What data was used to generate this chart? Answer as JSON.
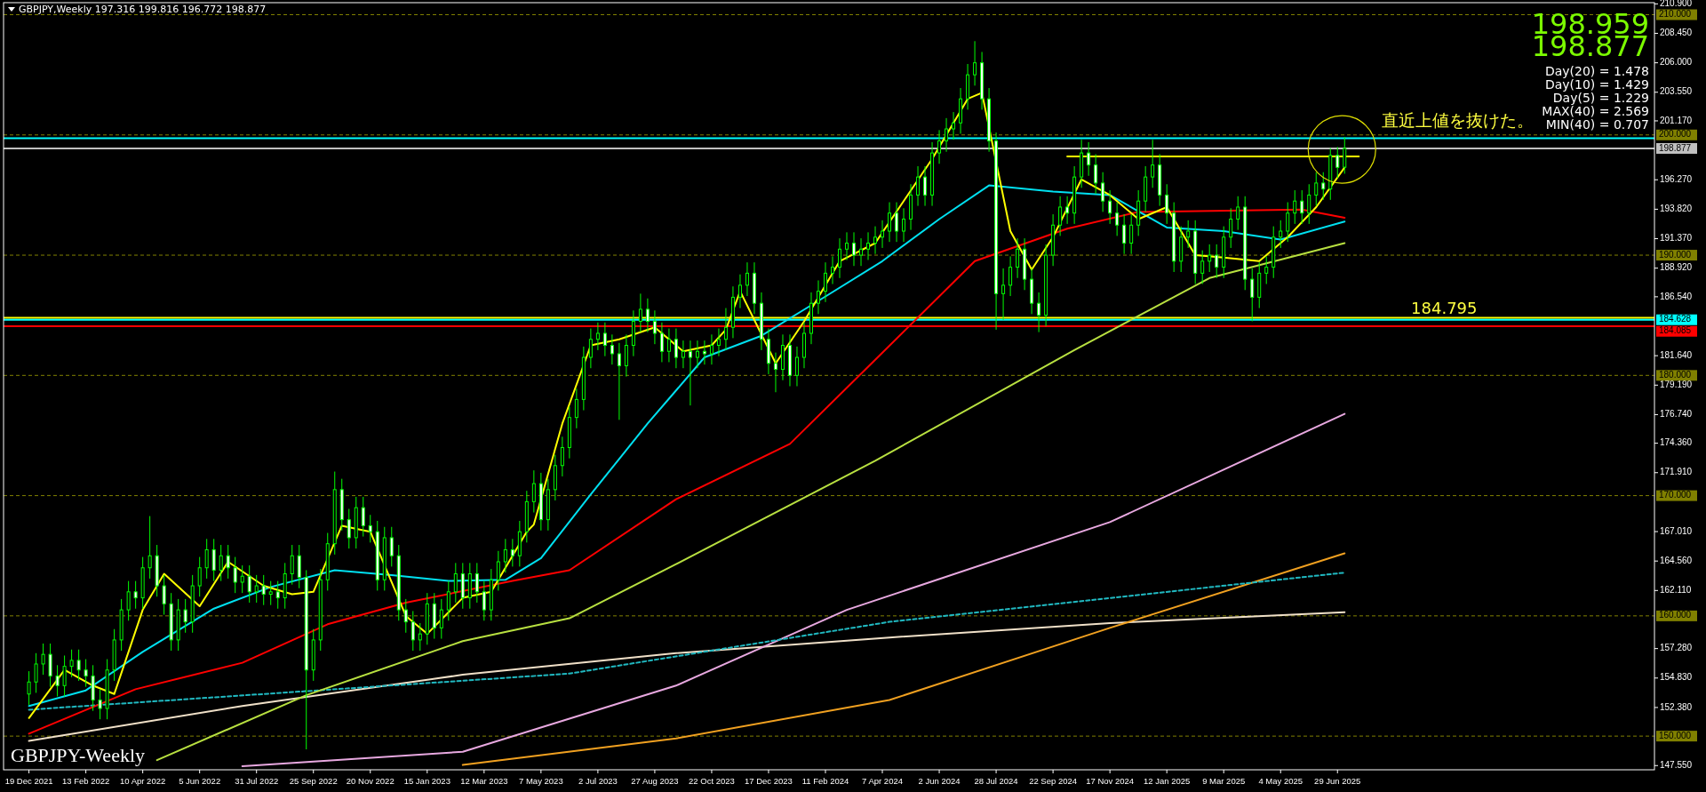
{
  "chart_data": {
    "type": "candlestick",
    "title": "GBPJPY,Weekly  197.316 199.816 196.772 198.877",
    "color": "#00ff00",
    "xlim": [
      "2021-11-24",
      "2026-05-07"
    ],
    "ylim": [
      147.2,
      211.0
    ],
    "xticks": [
      {
        "value": "2021-12-19",
        "label": "19 Dec 2021"
      },
      {
        "value": "2022-02-13",
        "label": "13 Feb 2022"
      },
      {
        "value": "2022-04-10",
        "label": "10 Apr 2022"
      },
      {
        "value": "2022-06-05",
        "label": "5 Jun 2022"
      },
      {
        "value": "2022-07-31",
        "label": "31 Jul 2022"
      },
      {
        "value": "2022-09-25",
        "label": "25 Sep 2022"
      },
      {
        "value": "2022-11-20",
        "label": "20 Nov 2022"
      },
      {
        "value": "2023-01-15",
        "label": "15 Jan 2023"
      },
      {
        "value": "2023-03-12",
        "label": "12 Mar 2023"
      },
      {
        "value": "2023-05-07",
        "label": "7 May 2023"
      },
      {
        "value": "2023-07-02",
        "label": "2 Jul 2023"
      },
      {
        "value": "2023-08-27",
        "label": "27 Aug 2023"
      },
      {
        "value": "2023-10-22",
        "label": "22 Oct 2023"
      },
      {
        "value": "2023-12-17",
        "label": "17 Dec 2023"
      },
      {
        "value": "2024-02-11",
        "label": "11 Feb 2024"
      },
      {
        "value": "2024-04-07",
        "label": "7 Apr 2024"
      },
      {
        "value": "2024-06-02",
        "label": "2 Jun 2024"
      },
      {
        "value": "2024-07-28",
        "label": "28 Jul 2024"
      },
      {
        "value": "2024-09-22",
        "label": "22 Sep 2024"
      },
      {
        "value": "2024-11-17",
        "label": "17 Nov 2024"
      },
      {
        "value": "2025-01-12",
        "label": "12 Jan 2025"
      },
      {
        "value": "2025-03-09",
        "label": "9 Mar 2025"
      },
      {
        "value": "2025-05-04",
        "label": "4 May 2025"
      },
      {
        "value": "2025-06-29",
        "label": "29 Jun 2025"
      }
    ],
    "yticks": [
      {
        "value": 210.9,
        "label": "210.900"
      },
      {
        "value": 208.45,
        "label": "208.450"
      },
      {
        "value": 206.0,
        "label": "206.000"
      },
      {
        "value": 203.55,
        "label": "203.550"
      },
      {
        "value": 201.17,
        "label": "201.170"
      },
      {
        "value": 196.27,
        "label": "196.270"
      },
      {
        "value": 193.82,
        "label": "193.820"
      },
      {
        "value": 191.37,
        "label": "191.370"
      },
      {
        "value": 188.92,
        "label": "188.920"
      },
      {
        "value": 186.54,
        "label": "186.540"
      },
      {
        "value": 181.64,
        "label": "181.640"
      },
      {
        "value": 179.19,
        "label": "179.190"
      },
      {
        "value": 176.74,
        "label": "176.740"
      },
      {
        "value": 174.36,
        "label": "174.360"
      },
      {
        "value": 171.91,
        "label": "171.910"
      },
      {
        "value": 167.01,
        "label": "167.010"
      },
      {
        "value": 164.56,
        "label": "164.560"
      },
      {
        "value": 162.11,
        "label": "162.110"
      },
      {
        "value": 157.28,
        "label": "157.280"
      },
      {
        "value": 154.83,
        "label": "154.830"
      },
      {
        "value": 152.38,
        "label": "152.380"
      },
      {
        "value": 147.55,
        "label": "147.550"
      }
    ],
    "x": [
      "2021-12-19",
      "2021-12-26",
      "2022-01-02",
      "2022-01-09",
      "2022-01-16",
      "2022-01-23",
      "2022-01-30",
      "2022-02-06",
      "2022-02-13",
      "2022-02-20",
      "2022-02-27",
      "2022-03-06",
      "2022-03-13",
      "2022-03-20",
      "2022-03-27",
      "2022-04-03",
      "2022-04-10",
      "2022-04-17",
      "2022-04-24",
      "2022-05-01",
      "2022-05-08",
      "2022-05-15",
      "2022-05-22",
      "2022-05-29",
      "2022-06-05",
      "2022-06-12",
      "2022-06-19",
      "2022-06-26",
      "2022-07-03",
      "2022-07-10",
      "2022-07-17",
      "2022-07-24",
      "2022-07-31",
      "2022-08-07",
      "2022-08-14",
      "2022-08-21",
      "2022-08-28",
      "2022-09-04",
      "2022-09-11",
      "2022-09-18",
      "2022-09-25",
      "2022-10-02",
      "2022-10-09",
      "2022-10-16",
      "2022-10-23",
      "2022-10-30",
      "2022-11-06",
      "2022-11-13",
      "2022-11-20",
      "2022-11-27",
      "2022-12-04",
      "2022-12-11",
      "2022-12-18",
      "2022-12-25",
      "2023-01-01",
      "2023-01-08",
      "2023-01-15",
      "2023-01-22",
      "2023-01-29",
      "2023-02-05",
      "2023-02-12",
      "2023-02-19",
      "2023-02-26",
      "2023-03-05",
      "2023-03-12",
      "2023-03-19",
      "2023-03-26",
      "2023-04-02",
      "2023-04-09",
      "2023-04-16",
      "2023-04-23",
      "2023-04-30",
      "2023-05-07",
      "2023-05-14",
      "2023-05-21",
      "2023-05-28",
      "2023-06-04",
      "2023-06-11",
      "2023-06-18",
      "2023-06-25",
      "2023-07-02",
      "2023-07-09",
      "2023-07-16",
      "2023-07-23",
      "2023-07-30",
      "2023-08-06",
      "2023-08-13",
      "2023-08-20",
      "2023-08-27",
      "2023-09-03",
      "2023-09-10",
      "2023-09-17",
      "2023-09-24",
      "2023-10-01",
      "2023-10-08",
      "2023-10-15",
      "2023-10-22",
      "2023-10-29",
      "2023-11-05",
      "2023-11-12",
      "2023-11-19",
      "2023-11-26",
      "2023-12-03",
      "2023-12-10",
      "2023-12-17",
      "2023-12-24",
      "2023-12-31",
      "2024-01-07",
      "2024-01-14",
      "2024-01-21",
      "2024-01-28",
      "2024-02-04",
      "2024-02-11",
      "2024-02-18",
      "2024-02-25",
      "2024-03-03",
      "2024-03-10",
      "2024-03-17",
      "2024-03-24",
      "2024-03-31",
      "2024-04-07",
      "2024-04-14",
      "2024-04-21",
      "2024-04-28",
      "2024-05-05",
      "2024-05-12",
      "2024-05-19",
      "2024-05-26",
      "2024-06-02",
      "2024-06-09",
      "2024-06-16",
      "2024-06-23",
      "2024-06-30",
      "2024-07-07",
      "2024-07-14",
      "2024-07-21",
      "2024-07-28",
      "2024-08-04",
      "2024-08-11",
      "2024-08-18",
      "2024-08-25",
      "2024-09-01",
      "2024-09-08",
      "2024-09-15",
      "2024-09-22",
      "2024-09-29",
      "2024-10-06",
      "2024-10-13",
      "2024-10-20",
      "2024-10-27",
      "2024-11-03",
      "2024-11-10",
      "2024-11-17",
      "2024-11-24",
      "2024-12-01",
      "2024-12-08",
      "2024-12-15",
      "2024-12-22",
      "2024-12-29",
      "2025-01-05",
      "2025-01-12",
      "2025-01-19",
      "2025-01-26",
      "2025-02-02",
      "2025-02-09",
      "2025-02-16",
      "2025-02-23",
      "2025-03-02",
      "2025-03-09",
      "2025-03-16",
      "2025-03-23",
      "2025-03-30",
      "2025-04-06",
      "2025-04-13",
      "2025-04-20",
      "2025-04-27",
      "2025-05-04",
      "2025-05-11",
      "2025-05-18",
      "2025-05-25",
      "2025-06-01",
      "2025-06-08",
      "2025-06-15",
      "2025-06-22",
      "2025-06-29",
      "2025-07-06"
    ],
    "ohlc": [
      [
        153.5,
        155.4,
        152.6,
        154.5
      ],
      [
        154.5,
        156.9,
        153.6,
        156.0
      ],
      [
        156.0,
        157.7,
        155.1,
        156.8
      ],
      [
        156.8,
        157.7,
        154.1,
        155.0
      ],
      [
        155.0,
        155.9,
        153.3,
        154.2
      ],
      [
        154.2,
        156.7,
        153.3,
        155.8
      ],
      [
        155.8,
        157.2,
        154.9,
        156.3
      ],
      [
        156.3,
        157.2,
        154.6,
        155.5
      ],
      [
        155.5,
        156.4,
        154.1,
        155.0
      ],
      [
        155.0,
        155.9,
        152.1,
        153.0
      ],
      [
        153.0,
        153.9,
        151.4,
        152.3
      ],
      [
        152.3,
        156.4,
        151.4,
        155.5
      ],
      [
        155.5,
        158.9,
        154.6,
        158.0
      ],
      [
        158.0,
        161.4,
        157.1,
        160.5
      ],
      [
        160.5,
        162.9,
        159.6,
        162.0
      ],
      [
        162.0,
        162.9,
        160.6,
        161.5
      ],
      [
        161.5,
        164.9,
        160.6,
        164.0
      ],
      [
        164.0,
        168.3,
        163.1,
        165.0
      ],
      [
        165.0,
        165.9,
        161.6,
        162.5
      ],
      [
        162.5,
        163.4,
        160.1,
        161.0
      ],
      [
        161.0,
        161.9,
        157.1,
        158.0
      ],
      [
        158.0,
        161.4,
        157.1,
        160.5
      ],
      [
        160.5,
        161.4,
        158.6,
        159.5
      ],
      [
        159.5,
        163.4,
        158.6,
        162.5
      ],
      [
        162.5,
        164.9,
        161.6,
        164.0
      ],
      [
        164.0,
        166.4,
        163.1,
        165.5
      ],
      [
        165.5,
        166.4,
        162.9,
        163.8
      ],
      [
        163.8,
        165.9,
        162.9,
        165.0
      ],
      [
        165.0,
        165.9,
        163.1,
        164.0
      ],
      [
        164.0,
        164.9,
        161.9,
        162.8
      ],
      [
        162.8,
        164.2,
        161.9,
        163.3
      ],
      [
        163.3,
        164.2,
        161.1,
        162.0
      ],
      [
        162.0,
        163.4,
        161.1,
        162.5
      ],
      [
        162.5,
        163.4,
        160.9,
        161.8
      ],
      [
        161.8,
        162.9,
        160.9,
        162.0
      ],
      [
        162.0,
        162.9,
        160.6,
        161.5
      ],
      [
        161.5,
        164.4,
        160.6,
        163.5
      ],
      [
        163.5,
        165.9,
        162.6,
        165.0
      ],
      [
        165.0,
        165.9,
        162.3,
        163.2
      ],
      [
        163.2,
        163.8,
        148.9,
        155.5
      ],
      [
        155.5,
        158.9,
        154.6,
        158.0
      ],
      [
        158.0,
        163.9,
        157.1,
        163.0
      ],
      [
        163.0,
        166.9,
        162.1,
        166.0
      ],
      [
        166.0,
        172.0,
        165.1,
        170.5
      ],
      [
        170.5,
        171.4,
        167.1,
        168.0
      ],
      [
        168.0,
        168.9,
        165.6,
        166.5
      ],
      [
        166.5,
        169.9,
        165.6,
        169.0
      ],
      [
        169.0,
        169.9,
        166.6,
        167.5
      ],
      [
        167.5,
        168.4,
        166.1,
        167.0
      ],
      [
        167.0,
        167.9,
        162.1,
        163.0
      ],
      [
        163.0,
        167.4,
        162.1,
        166.5
      ],
      [
        166.5,
        167.4,
        164.1,
        165.0
      ],
      [
        165.0,
        165.9,
        159.6,
        160.5
      ],
      [
        160.5,
        161.4,
        158.6,
        159.5
      ],
      [
        159.5,
        160.4,
        157.1,
        158.0
      ],
      [
        158.0,
        159.4,
        157.1,
        158.5
      ],
      [
        158.5,
        161.9,
        157.6,
        161.0
      ],
      [
        161.0,
        161.9,
        158.1,
        159.0
      ],
      [
        159.0,
        161.4,
        158.1,
        160.5
      ],
      [
        160.5,
        162.9,
        159.6,
        162.0
      ],
      [
        162.0,
        164.4,
        161.1,
        163.5
      ],
      [
        163.5,
        164.4,
        160.6,
        161.5
      ],
      [
        161.5,
        164.4,
        160.6,
        163.5
      ],
      [
        163.5,
        164.4,
        161.1,
        162.0
      ],
      [
        162.0,
        162.9,
        159.6,
        160.5
      ],
      [
        160.5,
        163.9,
        159.6,
        163.0
      ],
      [
        163.0,
        165.4,
        162.1,
        164.5
      ],
      [
        164.5,
        166.4,
        163.6,
        165.5
      ],
      [
        165.5,
        166.4,
        164.1,
        165.0
      ],
      [
        165.0,
        167.9,
        164.1,
        167.0
      ],
      [
        167.0,
        170.4,
        166.1,
        169.5
      ],
      [
        169.5,
        172.1,
        168.6,
        171.0
      ],
      [
        171.0,
        171.9,
        167.1,
        168.0
      ],
      [
        168.0,
        171.4,
        167.1,
        170.5
      ],
      [
        170.5,
        173.4,
        169.6,
        172.5
      ],
      [
        172.5,
        174.9,
        171.6,
        174.0
      ],
      [
        174.0,
        177.4,
        173.1,
        176.5
      ],
      [
        176.5,
        178.9,
        175.6,
        178.0
      ],
      [
        178.0,
        182.4,
        177.1,
        181.5
      ],
      [
        181.5,
        183.9,
        180.6,
        183.0
      ],
      [
        183.0,
        184.4,
        182.1,
        183.5
      ],
      [
        183.5,
        184.4,
        181.6,
        182.5
      ],
      [
        182.5,
        183.4,
        180.9,
        181.8
      ],
      [
        181.8,
        182.7,
        176.3,
        180.8
      ],
      [
        180.8,
        183.4,
        179.9,
        182.5
      ],
      [
        182.5,
        185.4,
        181.6,
        184.5
      ],
      [
        184.5,
        186.8,
        183.6,
        185.5
      ],
      [
        185.5,
        186.4,
        183.6,
        184.5
      ],
      [
        184.5,
        185.4,
        182.6,
        183.5
      ],
      [
        183.5,
        184.4,
        181.1,
        182.0
      ],
      [
        182.0,
        183.9,
        181.1,
        183.0
      ],
      [
        183.0,
        183.9,
        180.6,
        181.5
      ],
      [
        181.5,
        182.9,
        180.6,
        182.0
      ],
      [
        182.0,
        182.9,
        177.5,
        181.5
      ],
      [
        181.5,
        182.9,
        180.6,
        182.0
      ],
      [
        182.0,
        182.9,
        180.9,
        181.8
      ],
      [
        181.8,
        183.4,
        180.9,
        182.5
      ],
      [
        182.5,
        183.9,
        181.6,
        183.0
      ],
      [
        183.0,
        185.6,
        182.1,
        184.0
      ],
      [
        184.0,
        187.4,
        183.1,
        186.5
      ],
      [
        186.5,
        188.4,
        185.6,
        187.5
      ],
      [
        187.5,
        189.4,
        186.6,
        188.5
      ],
      [
        188.5,
        189.4,
        185.1,
        186.0
      ],
      [
        186.0,
        186.9,
        182.1,
        183.0
      ],
      [
        183.0,
        183.9,
        180.1,
        181.0
      ],
      [
        181.0,
        181.9,
        178.6,
        180.5
      ],
      [
        180.5,
        183.4,
        179.6,
        182.5
      ],
      [
        182.5,
        183.4,
        179.1,
        180.0
      ],
      [
        180.0,
        182.4,
        179.1,
        181.5
      ],
      [
        181.5,
        184.4,
        180.6,
        183.5
      ],
      [
        183.5,
        186.9,
        182.6,
        186.0
      ],
      [
        186.0,
        187.9,
        185.1,
        187.0
      ],
      [
        187.0,
        189.4,
        186.1,
        188.5
      ],
      [
        188.5,
        189.9,
        187.6,
        189.0
      ],
      [
        189.0,
        191.4,
        188.1,
        190.5
      ],
      [
        190.5,
        191.9,
        189.6,
        191.0
      ],
      [
        191.0,
        191.9,
        189.1,
        190.0
      ],
      [
        190.0,
        191.4,
        189.1,
        190.5
      ],
      [
        190.5,
        191.9,
        189.6,
        191.0
      ],
      [
        191.0,
        192.4,
        190.1,
        191.5
      ],
      [
        191.5,
        192.9,
        190.6,
        192.0
      ],
      [
        192.0,
        194.4,
        191.1,
        193.5
      ],
      [
        193.5,
        194.4,
        191.1,
        192.0
      ],
      [
        192.0,
        193.9,
        191.1,
        193.0
      ],
      [
        193.0,
        195.9,
        192.1,
        195.0
      ],
      [
        195.0,
        197.4,
        194.1,
        196.5
      ],
      [
        196.5,
        197.4,
        194.1,
        195.0
      ],
      [
        195.0,
        199.4,
        194.1,
        198.5
      ],
      [
        198.5,
        200.4,
        197.6,
        199.5
      ],
      [
        199.5,
        201.4,
        198.6,
        200.5
      ],
      [
        200.5,
        201.9,
        199.6,
        201.0
      ],
      [
        201.0,
        203.9,
        200.1,
        203.0
      ],
      [
        203.0,
        205.9,
        202.1,
        205.0
      ],
      [
        205.0,
        207.8,
        204.1,
        206.0
      ],
      [
        206.0,
        206.9,
        202.1,
        203.0
      ],
      [
        203.0,
        203.9,
        198.6,
        199.5
      ],
      [
        199.5,
        200.2,
        183.8,
        186.8
      ],
      [
        186.8,
        188.9,
        184.6,
        187.5
      ],
      [
        187.5,
        189.9,
        186.6,
        189.0
      ],
      [
        189.0,
        191.4,
        188.1,
        190.5
      ],
      [
        190.5,
        191.4,
        187.1,
        188.0
      ],
      [
        188.0,
        188.9,
        185.1,
        186.0
      ],
      [
        186.0,
        186.9,
        183.6,
        185.0
      ],
      [
        185.0,
        190.9,
        184.1,
        190.0
      ],
      [
        190.0,
        193.4,
        189.1,
        192.5
      ],
      [
        192.5,
        194.9,
        191.6,
        194.0
      ],
      [
        194.0,
        194.9,
        192.6,
        193.5
      ],
      [
        193.5,
        197.4,
        192.6,
        196.5
      ],
      [
        196.5,
        199.6,
        195.6,
        198.5
      ],
      [
        198.5,
        199.4,
        196.6,
        197.5
      ],
      [
        197.5,
        198.4,
        195.1,
        196.0
      ],
      [
        196.0,
        196.9,
        193.6,
        194.5
      ],
      [
        194.5,
        195.4,
        192.6,
        193.5
      ],
      [
        193.5,
        194.4,
        191.6,
        192.5
      ],
      [
        192.5,
        193.4,
        190.1,
        191.0
      ],
      [
        191.0,
        193.4,
        190.1,
        192.5
      ],
      [
        192.5,
        195.4,
        191.6,
        194.5
      ],
      [
        194.5,
        197.4,
        193.6,
        196.5
      ],
      [
        196.5,
        199.6,
        195.6,
        197.5
      ],
      [
        197.5,
        198.4,
        194.1,
        195.0
      ],
      [
        195.0,
        195.9,
        192.6,
        193.5
      ],
      [
        193.5,
        194.4,
        188.6,
        189.5
      ],
      [
        189.5,
        192.4,
        188.6,
        191.5
      ],
      [
        191.5,
        192.9,
        190.6,
        192.0
      ],
      [
        192.0,
        192.9,
        187.6,
        188.5
      ],
      [
        188.5,
        190.4,
        187.6,
        189.5
      ],
      [
        189.5,
        190.9,
        188.6,
        190.0
      ],
      [
        190.0,
        190.9,
        188.1,
        189.0
      ],
      [
        189.0,
        192.4,
        188.1,
        191.5
      ],
      [
        191.5,
        193.9,
        190.6,
        193.0
      ],
      [
        193.0,
        194.9,
        192.1,
        194.0
      ],
      [
        194.0,
        194.9,
        187.1,
        188.0
      ],
      [
        188.0,
        188.9,
        184.5,
        186.5
      ],
      [
        186.5,
        189.4,
        185.6,
        188.5
      ],
      [
        188.5,
        189.9,
        187.6,
        189.0
      ],
      [
        189.0,
        192.4,
        188.1,
        191.5
      ],
      [
        191.5,
        192.9,
        190.6,
        192.0
      ],
      [
        192.0,
        194.4,
        191.1,
        193.5
      ],
      [
        193.5,
        195.4,
        192.6,
        194.5
      ],
      [
        194.5,
        195.4,
        192.6,
        193.5
      ],
      [
        193.5,
        195.9,
        192.6,
        195.0
      ],
      [
        195.0,
        196.9,
        194.1,
        196.0
      ],
      [
        196.0,
        196.9,
        194.6,
        195.5
      ],
      [
        195.5,
        198.9,
        194.6,
        198.3
      ],
      [
        198.3,
        199.0,
        196.4,
        197.3
      ],
      [
        197.316,
        199.816,
        196.772,
        198.877
      ]
    ],
    "series": [
      {
        "type": "line",
        "color": "#f0e0c8",
        "x": [
          "2021-12-19",
          "2022-07-17",
          "2023-02-19",
          "2023-09-17",
          "2024-04-14",
          "2024-11-17",
          "2025-07-06"
        ],
        "values": [
          149.6,
          152.5,
          155.1,
          156.9,
          158.2,
          159.4,
          160.3
        ]
      },
      {
        "type": "line",
        "color": "#f0a020",
        "x": [
          "2023-02-19",
          "2023-09-17",
          "2024-04-14",
          "2024-11-17",
          "2025-07-06"
        ],
        "values": [
          147.6,
          149.8,
          153.0,
          159.0,
          165.2
        ]
      },
      {
        "type": "line",
        "color": "#e8a8e0",
        "x": [
          "2022-07-17",
          "2023-02-19",
          "2023-09-17",
          "2024-03-03",
          "2024-11-17",
          "2025-07-06"
        ],
        "values": [
          147.5,
          148.7,
          154.2,
          160.5,
          167.8,
          176.8
        ]
      },
      {
        "type": "line",
        "color": "#20b8c0",
        "line_style": "dashed",
        "x": [
          "2021-12-19",
          "2023-06-04",
          "2024-04-14",
          "2025-07-06"
        ],
        "values": [
          152.2,
          155.2,
          159.5,
          163.6
        ]
      },
      {
        "type": "line",
        "color": "#b8e040",
        "x": [
          "2022-04-24",
          "2022-09-18",
          "2023-02-19",
          "2023-06-04",
          "2023-09-17",
          "2024-03-31",
          "2024-10-13",
          "2025-02-23",
          "2025-07-06"
        ],
        "values": [
          148.0,
          153.4,
          157.9,
          159.8,
          164.3,
          172.9,
          182.1,
          188.1,
          191.0
        ]
      },
      {
        "type": "line",
        "color": "#ff0000",
        "x": [
          "2021-12-19",
          "2022-04-03",
          "2022-07-17",
          "2022-10-09",
          "2022-12-25",
          "2023-04-09",
          "2023-06-04",
          "2023-09-17",
          "2024-01-07",
          "2024-03-31",
          "2024-07-07",
          "2024-10-06",
          "2024-12-15",
          "2025-05-25",
          "2025-07-06"
        ],
        "values": [
          150.2,
          153.9,
          156.1,
          159.3,
          161.1,
          162.9,
          163.8,
          169.7,
          174.3,
          181.3,
          189.5,
          192.2,
          193.6,
          193.8,
          193.1
        ]
      },
      {
        "type": "line",
        "color": "#00e0f0",
        "x": [
          "2021-12-19",
          "2022-02-13",
          "2022-04-10",
          "2022-06-19",
          "2022-08-14",
          "2022-10-16",
          "2022-12-11",
          "2023-02-05",
          "2023-04-02",
          "2023-05-07",
          "2023-06-25",
          "2023-08-20",
          "2023-10-15",
          "2023-12-10",
          "2024-02-04",
          "2024-04-07",
          "2024-06-02",
          "2024-07-21",
          "2024-09-22",
          "2024-11-17",
          "2025-01-12",
          "2025-03-09",
          "2025-05-04",
          "2025-07-06"
        ],
        "values": [
          152.5,
          153.8,
          157.0,
          160.6,
          162.4,
          163.8,
          163.4,
          162.9,
          163.0,
          164.8,
          170.1,
          176.0,
          181.5,
          183.3,
          186.2,
          189.5,
          193.0,
          195.8,
          195.3,
          195.0,
          192.3,
          192.0,
          191.3,
          192.8
        ]
      },
      {
        "type": "line",
        "color": "#ffff00",
        "x": [
          "2021-12-19",
          "2022-01-23",
          "2022-02-20",
          "2022-03-13",
          "2022-04-10",
          "2022-05-01",
          "2022-06-05",
          "2022-07-03",
          "2022-08-07",
          "2022-09-04",
          "2022-09-25",
          "2022-10-23",
          "2022-11-20",
          "2022-12-25",
          "2023-01-15",
          "2023-02-19",
          "2023-03-19",
          "2023-04-23",
          "2023-04-30",
          "2023-05-28",
          "2023-06-25",
          "2023-07-23",
          "2023-08-27",
          "2023-09-24",
          "2023-10-22",
          "2023-11-05",
          "2023-11-19",
          "2023-12-24",
          "2024-01-21",
          "2024-02-25",
          "2024-03-31",
          "2024-04-28",
          "2024-05-26",
          "2024-06-30",
          "2024-07-14",
          "2024-08-11",
          "2024-09-01",
          "2024-09-22",
          "2024-10-20",
          "2024-11-17",
          "2024-12-15",
          "2025-01-12",
          "2025-02-09",
          "2025-03-09",
          "2025-04-13",
          "2025-05-11",
          "2025-06-08",
          "2025-07-06"
        ],
        "values": [
          151.5,
          155.5,
          154.2,
          153.5,
          160.5,
          163.5,
          160.8,
          164.5,
          162.5,
          161.8,
          162.0,
          167.5,
          167.0,
          160.0,
          158.5,
          161.5,
          162.0,
          167.0,
          167.6,
          176.0,
          182.5,
          183.0,
          184.0,
          182.0,
          182.5,
          183.8,
          187.0,
          181.0,
          184.5,
          189.5,
          191.0,
          194.5,
          198.0,
          203.0,
          203.5,
          192.0,
          188.8,
          191.5,
          196.3,
          195.0,
          193.0,
          194.0,
          190.0,
          189.8,
          189.5,
          191.5,
          194.0,
          197.3
        ]
      },
      {
        "type": "line",
        "color": "#ffff00",
        "x": [
          "2024-10-06",
          "2025-07-20"
        ],
        "values": [
          198.2,
          198.2
        ]
      }
    ],
    "ref_lines": [
      {
        "axis": "y",
        "value": 150,
        "label": "150.000",
        "color": "#808000",
        "line_style": "dashed"
      },
      {
        "axis": "y",
        "value": 160,
        "label": "160.000",
        "color": "#808000",
        "line_style": "dashed"
      },
      {
        "axis": "y",
        "value": 170,
        "label": "170.000",
        "color": "#808000",
        "line_style": "dashed"
      },
      {
        "axis": "y",
        "value": 180,
        "label": "180.000",
        "color": "#808000",
        "line_style": "dashed"
      },
      {
        "axis": "y",
        "value": 190,
        "label": "190.000",
        "color": "#808000",
        "line_style": "dashed"
      },
      {
        "axis": "y",
        "value": 200,
        "label": "200.000",
        "color": "#808000",
        "line_style": "dashed"
      },
      {
        "axis": "y",
        "value": 210,
        "label": "210.000",
        "color": "#808000",
        "line_style": "dashed"
      },
      {
        "axis": "y",
        "value": 184.795,
        "color": "#ffff00",
        "line_style": "solid"
      },
      {
        "axis": "y",
        "value": 184.085,
        "label": "184.085",
        "color": "#ff0000",
        "line_style": "solid"
      },
      {
        "axis": "y",
        "value": 184.628,
        "label": "184.628",
        "color": "#00ffff",
        "line_style": "solid"
      },
      {
        "axis": "y",
        "value": 198.877,
        "label": "198.877",
        "color": "#c0c0c0",
        "line_style": "solid"
      },
      {
        "axis": "y",
        "value": 199.73,
        "color": "#00ffff",
        "line_style": "solid"
      }
    ],
    "annotations": [
      "GBPJPY-Weekly",
      "198.959",
      "198.877",
      "Day(20) = 1.478",
      "Day(10) = 1.429",
      "Day(5) = 1.229",
      "MAX(40) = 2.569",
      "MIN(40) = 0.707",
      {
        "text": "直近上値を抜けた。",
        "x": "2025-07-06",
        "y": 198.8
      },
      {
        "text": "184.795",
        "x": "2025-10-12",
        "y": 184.795
      }
    ]
  }
}
